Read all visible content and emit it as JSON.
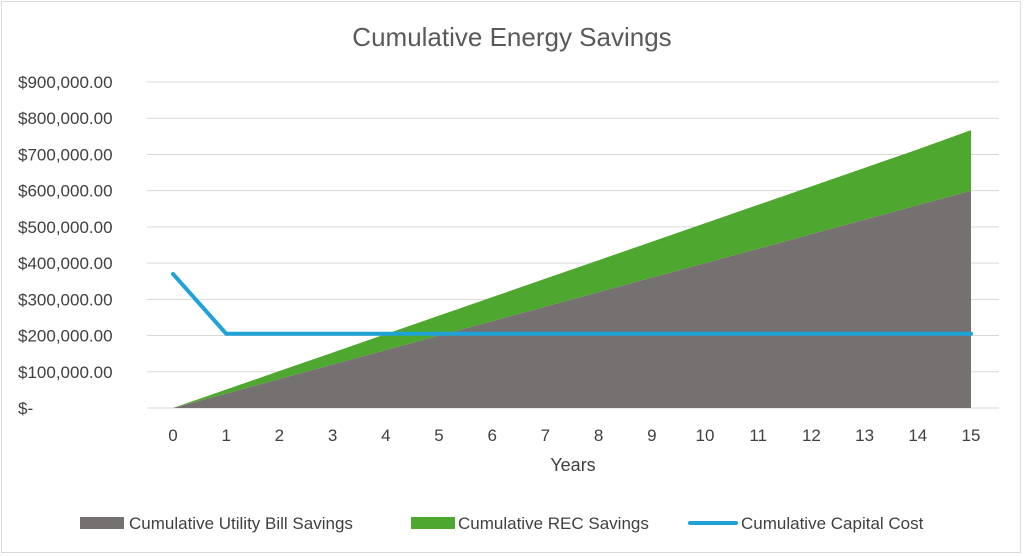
{
  "chart_data": {
    "type": "area",
    "title": "Cumulative Energy Savings",
    "xlabel": "Years",
    "ylabel": "",
    "x": [
      0,
      1,
      2,
      3,
      4,
      5,
      6,
      7,
      8,
      9,
      10,
      11,
      12,
      13,
      14,
      15
    ],
    "ylim": [
      0,
      900000
    ],
    "yticks": [
      0,
      100000,
      200000,
      300000,
      400000,
      500000,
      600000,
      700000,
      800000,
      900000
    ],
    "ytick_labels": [
      "$-",
      "$100,000.00",
      "$200,000.00",
      "$300,000.00",
      "$400,000.00",
      "$500,000.00",
      "$600,000.00",
      "$700,000.00",
      "$800,000.00",
      "$900,000.00"
    ],
    "grid": true,
    "legend_position": "bottom",
    "series": [
      {
        "name": "Cumulative Utility Bill Savings",
        "kind": "stacked-area",
        "color": "#767171",
        "values": [
          0,
          40000,
          80000,
          120000,
          160000,
          200000,
          240000,
          280000,
          320000,
          360000,
          400000,
          440000,
          480000,
          520000,
          560000,
          600000
        ]
      },
      {
        "name": "Cumulative REC Savings",
        "kind": "stacked-area",
        "color": "#4ea72e",
        "values": [
          0,
          11000,
          22000,
          33000,
          44000,
          55000,
          66000,
          77000,
          88000,
          99000,
          110000,
          121000,
          132000,
          143000,
          154000,
          167000
        ]
      },
      {
        "name": "Cumulative Capital Cost",
        "kind": "line",
        "color": "#1fa2d6",
        "values": [
          370000,
          205000,
          205000,
          205000,
          205000,
          205000,
          205000,
          205000,
          205000,
          205000,
          205000,
          205000,
          205000,
          205000,
          205000,
          205000
        ]
      }
    ]
  }
}
